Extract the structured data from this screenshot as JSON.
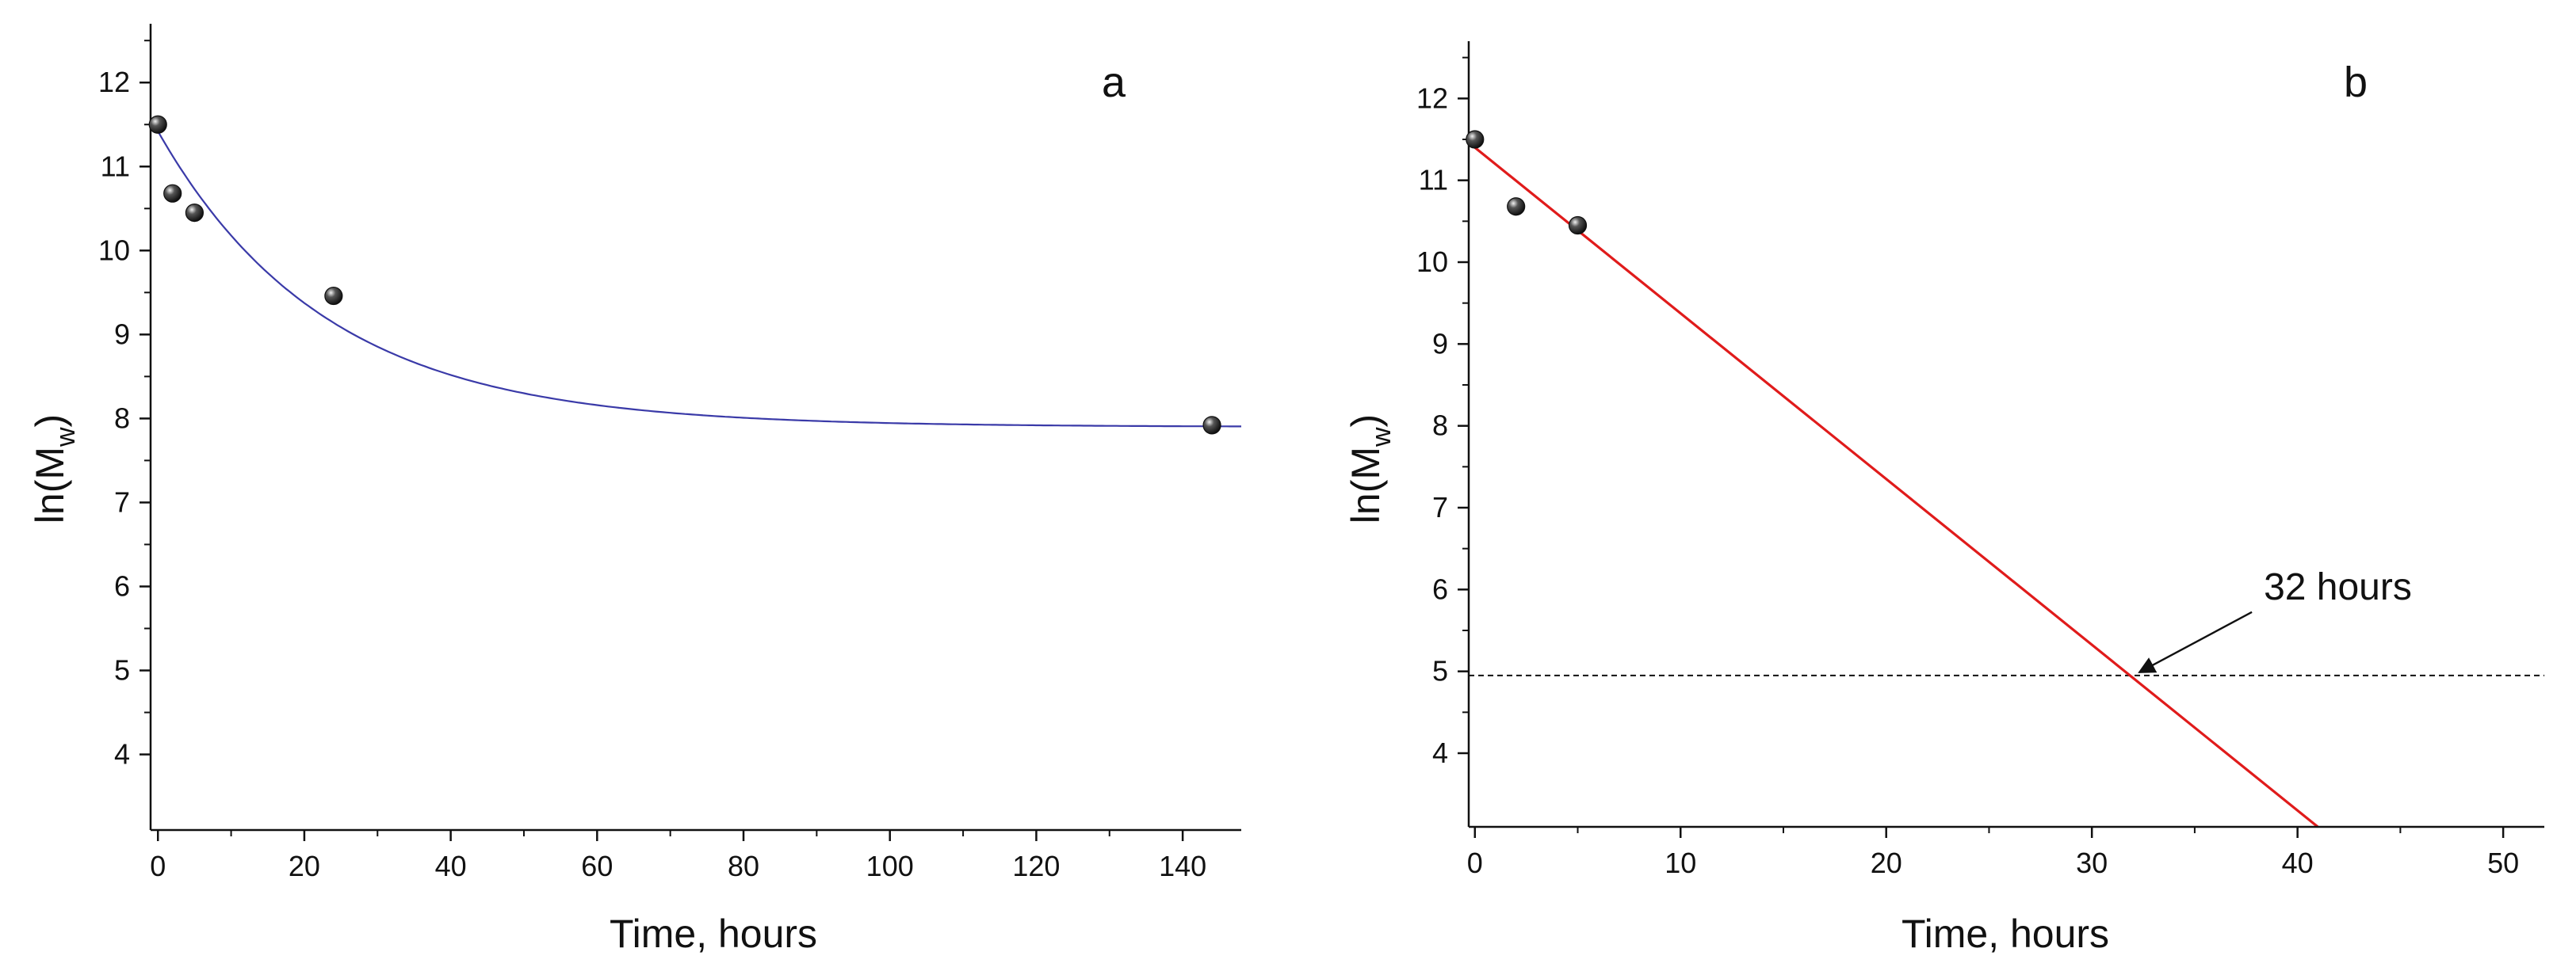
{
  "chart_data": [
    {
      "panel_label": "a",
      "type": "scatter",
      "xlabel": "Time, hours",
      "ylabel": {
        "base": "ln(M",
        "sub": "w",
        "close": ")"
      },
      "xlim": [
        -1,
        148
      ],
      "ylim": [
        3.1,
        12.7
      ],
      "xticks": [
        0,
        20,
        40,
        60,
        80,
        100,
        120,
        140
      ],
      "yticks": [
        4,
        5,
        6,
        7,
        8,
        9,
        10,
        11,
        12
      ],
      "points": [
        {
          "x": 0,
          "y": 11.5
        },
        {
          "x": 2,
          "y": 10.68
        },
        {
          "x": 5,
          "y": 10.45
        },
        {
          "x": 24,
          "y": 9.46
        },
        {
          "x": 144,
          "y": 7.92
        }
      ],
      "fit": {
        "type": "exponential decay",
        "equation": "y = 7.9 + 3.52*exp(-x/23)",
        "x_range": [
          0,
          148
        ],
        "color": "#3a3aa8"
      },
      "marker_color": "#111111"
    },
    {
      "panel_label": "b",
      "type": "scatter",
      "xlabel": "Time, hours",
      "ylabel": {
        "base": "ln(M",
        "sub": "w",
        "close": ")"
      },
      "xlim": [
        -0.3,
        52
      ],
      "ylim": [
        3.1,
        12.7
      ],
      "xticks": [
        0,
        10,
        20,
        30,
        40,
        50
      ],
      "yticks": [
        4,
        5,
        6,
        7,
        8,
        9,
        10,
        11,
        12
      ],
      "points": [
        {
          "x": 0,
          "y": 11.5
        },
        {
          "x": 2,
          "y": 10.68
        },
        {
          "x": 5,
          "y": 10.45
        }
      ],
      "fit": {
        "type": "linear",
        "intercept": 11.4,
        "slope": -0.2025,
        "x_range": [
          -0.3,
          41
        ],
        "color": "#e01b1b"
      },
      "reference_line": {
        "y": 4.95,
        "style": "dashed",
        "color": "#111111"
      },
      "annotation": {
        "text": "32 hours",
        "x": 32,
        "y": 4.95
      },
      "marker_color": "#111111"
    }
  ]
}
